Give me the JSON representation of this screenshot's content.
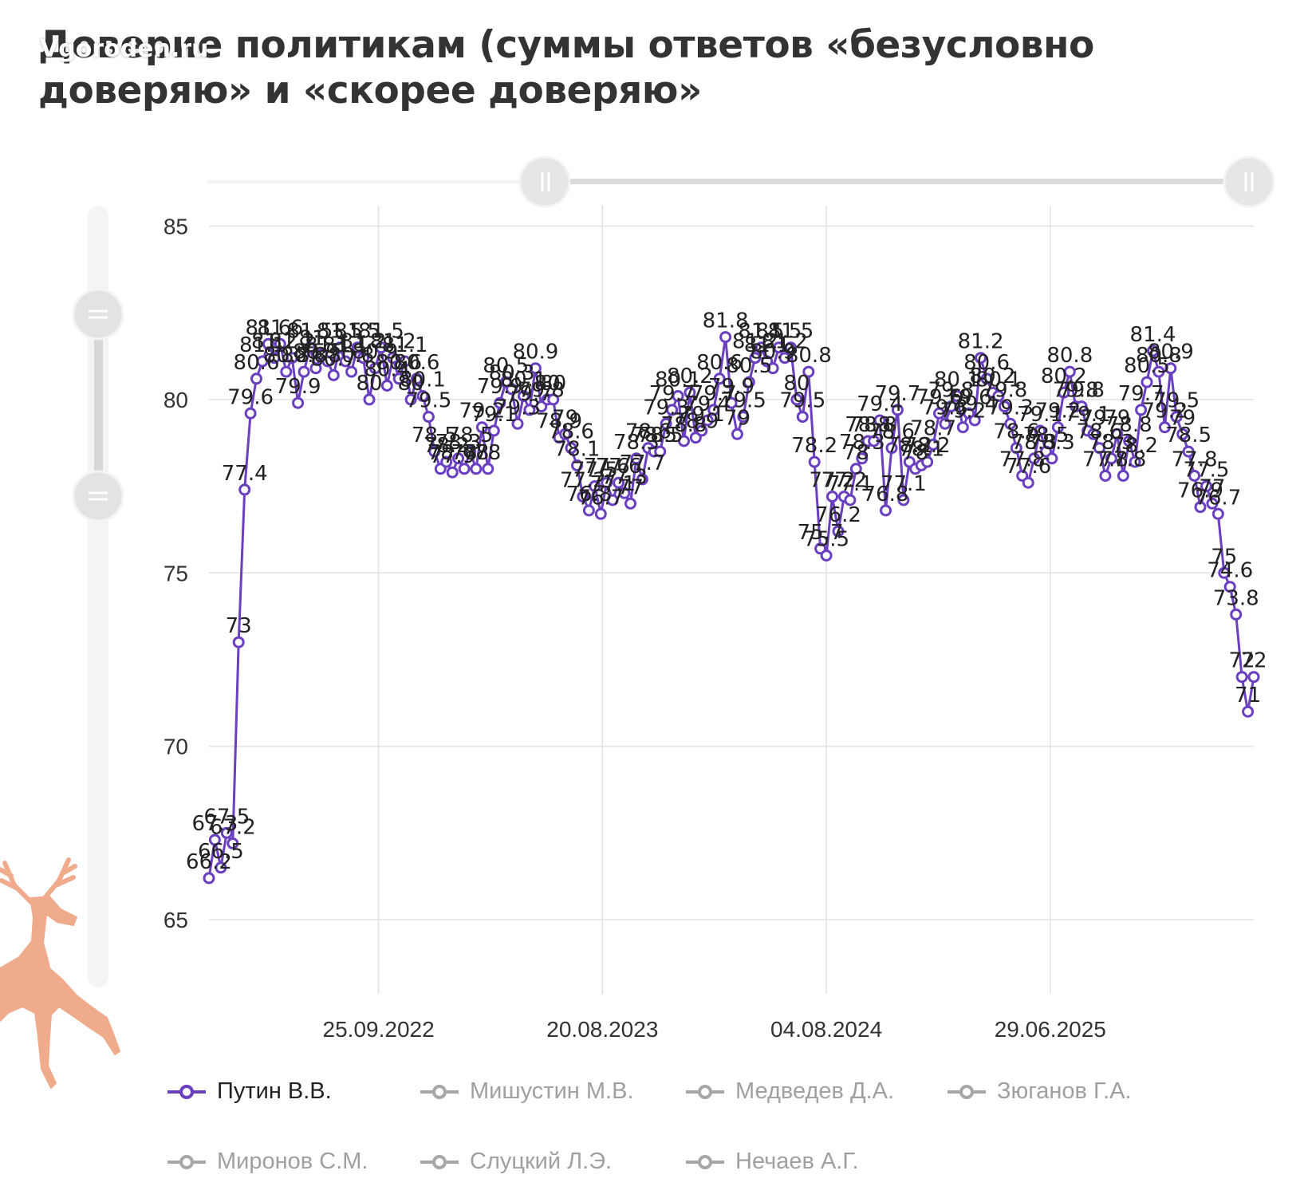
{
  "title": "Доверие политикам (суммы ответов «безусловно доверяю» и «скорее доверяю»",
  "watermark": "Vgoroden.ru",
  "colors": {
    "primary": "#6a3fc0",
    "inactive": "#a7a7a7",
    "grid": "#e2e2e2",
    "axis_text": "#333333",
    "deer": "#f0aa8c"
  },
  "chart_data": {
    "type": "line",
    "title": "Доверие политикам (суммы ответов «безусловно доверяю» и «скорее доверяю»",
    "xlabel": "",
    "ylabel": "",
    "ylim": [
      63,
      86
    ],
    "yticks": [
      65,
      70,
      75,
      80,
      85
    ],
    "x_tick_labels": [
      "25.09.2022",
      "20.08.2023",
      "04.08.2024",
      "29.06.2025"
    ],
    "grid": true,
    "legend_position": "bottom",
    "series": [
      {
        "name": "Путин В.В.",
        "active": true,
        "values": [
          66.2,
          67.3,
          66.5,
          67.5,
          67.2,
          73.0,
          77.4,
          79.6,
          80.6,
          81.1,
          81.6,
          81.2,
          81.6,
          80.8,
          81.2,
          79.9,
          80.8,
          81.5,
          80.9,
          81.3,
          81.1,
          80.7,
          81.5,
          81.1,
          80.8,
          81.5,
          81.2,
          80.0,
          80.9,
          81.5,
          80.4,
          81.2,
          80.6,
          81.1,
          80.0,
          80.6,
          80.1,
          79.5,
          78.5,
          78.0,
          78.2,
          77.9,
          78.3,
          78.0,
          78.5,
          78.0,
          79.2,
          78.0,
          79.1,
          79.9,
          80.5,
          80.3,
          79.3,
          80.1,
          79.7,
          80.9,
          79.8,
          80.0,
          80.0,
          78.9,
          79.0,
          78.6,
          78.1,
          77.2,
          76.8,
          77.5,
          76.7,
          77.6,
          77.1,
          77.6,
          77.3,
          77.0,
          78.3,
          77.7,
          78.6,
          78.5,
          78.5,
          79.3,
          79.7,
          80.1,
          78.8,
          80.2,
          78.9,
          79.1,
          79.4,
          79.7,
          80.6,
          81.8,
          79.9,
          79.0,
          79.5,
          80.5,
          81.2,
          81.5,
          81.1,
          80.9,
          81.5,
          81.2,
          81.5,
          80.0,
          79.5,
          80.8,
          78.2,
          75.7,
          75.5,
          77.2,
          76.2,
          77.2,
          77.1,
          78.0,
          78.3,
          78.8,
          78.8,
          79.4,
          76.8,
          78.6,
          79.7,
          77.1,
          78.2,
          78.0,
          78.1,
          78.2,
          78.7,
          79.6,
          79.3,
          79.8,
          80.1,
          79.2,
          79.6,
          79.4,
          81.2,
          80.6,
          80.2,
          80.1,
          79.8,
          79.3,
          78.6,
          77.8,
          77.6,
          78.3,
          79.1,
          78.5,
          78.3,
          79.2,
          80.2,
          80.8,
          79.8,
          79.8,
          79.1,
          79.0,
          78.6,
          77.8,
          78.3,
          79.0,
          77.8,
          78.8,
          78.2,
          79.7,
          80.5,
          81.4,
          80.8,
          79.2,
          80.9,
          79.5,
          79.0,
          78.5,
          77.8,
          76.9,
          77.5,
          77.0,
          76.7,
          75.0,
          74.6,
          73.8,
          72.0,
          71.0,
          72.0
        ]
      },
      {
        "name": "Мишустин М.В.",
        "active": false,
        "values": []
      },
      {
        "name": "Медведев Д.А.",
        "active": false,
        "values": []
      },
      {
        "name": "Зюганов Г.А.",
        "active": false,
        "values": []
      },
      {
        "name": "Миронов С.М.",
        "active": false,
        "values": []
      },
      {
        "name": "Слуцкий Л.Э.",
        "active": false,
        "values": []
      },
      {
        "name": "Нечаев А.Г.",
        "active": false,
        "values": []
      }
    ]
  }
}
